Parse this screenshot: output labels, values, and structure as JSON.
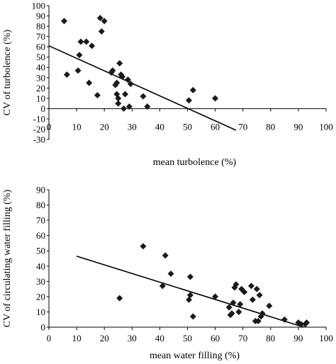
{
  "chart_data": [
    {
      "type": "scatter",
      "xlabel": "mean turbolence (%)",
      "ylabel": "CV of turbolence (%)",
      "xlim": [
        0,
        100
      ],
      "ylim": [
        -30,
        100
      ],
      "xticks": [
        0,
        10,
        20,
        30,
        40,
        50,
        60,
        70,
        80,
        90,
        100
      ],
      "yticks": [
        -30,
        -20,
        -10,
        0,
        10,
        20,
        30,
        40,
        50,
        60,
        70,
        80,
        90,
        100
      ],
      "trendline": {
        "x": [
          0,
          67.5
        ],
        "y": [
          61,
          -21
        ]
      },
      "points": [
        {
          "x": 5.5,
          "y": 85
        },
        {
          "x": 6.5,
          "y": 33
        },
        {
          "x": 10.5,
          "y": 37
        },
        {
          "x": 11,
          "y": 52
        },
        {
          "x": 11.5,
          "y": 65
        },
        {
          "x": 13.5,
          "y": 65
        },
        {
          "x": 14.5,
          "y": 25
        },
        {
          "x": 15.5,
          "y": 61
        },
        {
          "x": 17.5,
          "y": 13
        },
        {
          "x": 18.5,
          "y": 88
        },
        {
          "x": 19,
          "y": 75
        },
        {
          "x": 20,
          "y": 85
        },
        {
          "x": 22.5,
          "y": 35
        },
        {
          "x": 23,
          "y": 37
        },
        {
          "x": 24,
          "y": 23
        },
        {
          "x": 24.5,
          "y": 25
        },
        {
          "x": 24.5,
          "y": 14
        },
        {
          "x": 25,
          "y": 10
        },
        {
          "x": 25,
          "y": 5
        },
        {
          "x": 25.5,
          "y": 44
        },
        {
          "x": 26,
          "y": 33
        },
        {
          "x": 26.5,
          "y": 31
        },
        {
          "x": 27,
          "y": 0
        },
        {
          "x": 27.5,
          "y": 14
        },
        {
          "x": 28.5,
          "y": 28
        },
        {
          "x": 29,
          "y": 2
        },
        {
          "x": 29.5,
          "y": 24
        },
        {
          "x": 34,
          "y": 12
        },
        {
          "x": 35.5,
          "y": 2
        },
        {
          "x": 50.5,
          "y": 8
        },
        {
          "x": 52,
          "y": 18
        },
        {
          "x": 60,
          "y": 10
        }
      ]
    },
    {
      "type": "scatter",
      "xlabel": "mean water filling (%)",
      "ylabel": "CV of circulating water filling (%)",
      "xlim": [
        0,
        100
      ],
      "ylim": [
        0,
        90
      ],
      "xticks": [
        0,
        10,
        20,
        30,
        40,
        50,
        60,
        70,
        80,
        90,
        100
      ],
      "yticks": [
        0,
        10,
        20,
        30,
        40,
        50,
        60,
        70,
        80,
        90
      ],
      "trendline": {
        "x": [
          10,
          92
        ],
        "y": [
          46.5,
          0
        ]
      },
      "points": [
        {
          "x": 25.5,
          "y": 19
        },
        {
          "x": 34,
          "y": 53
        },
        {
          "x": 41,
          "y": 27
        },
        {
          "x": 42,
          "y": 47
        },
        {
          "x": 44,
          "y": 35
        },
        {
          "x": 50.5,
          "y": 18
        },
        {
          "x": 51,
          "y": 21
        },
        {
          "x": 51,
          "y": 33
        },
        {
          "x": 52,
          "y": 7
        },
        {
          "x": 60,
          "y": 20
        },
        {
          "x": 65,
          "y": 13
        },
        {
          "x": 65.5,
          "y": 8
        },
        {
          "x": 66,
          "y": 9
        },
        {
          "x": 66.5,
          "y": 16
        },
        {
          "x": 67,
          "y": 26
        },
        {
          "x": 67.5,
          "y": 28
        },
        {
          "x": 68.5,
          "y": 10
        },
        {
          "x": 69,
          "y": 15
        },
        {
          "x": 69.5,
          "y": 25
        },
        {
          "x": 70.5,
          "y": 23
        },
        {
          "x": 73,
          "y": 27
        },
        {
          "x": 73.5,
          "y": 18
        },
        {
          "x": 74.5,
          "y": 4
        },
        {
          "x": 75,
          "y": 25
        },
        {
          "x": 75.5,
          "y": 4
        },
        {
          "x": 76,
          "y": 21
        },
        {
          "x": 76.5,
          "y": 7
        },
        {
          "x": 77,
          "y": 9
        },
        {
          "x": 79.5,
          "y": 14
        },
        {
          "x": 85,
          "y": 5
        },
        {
          "x": 90,
          "y": 3
        },
        {
          "x": 91,
          "y": 2
        },
        {
          "x": 92.5,
          "y": 2
        },
        {
          "x": 93,
          "y": 3
        }
      ]
    }
  ]
}
